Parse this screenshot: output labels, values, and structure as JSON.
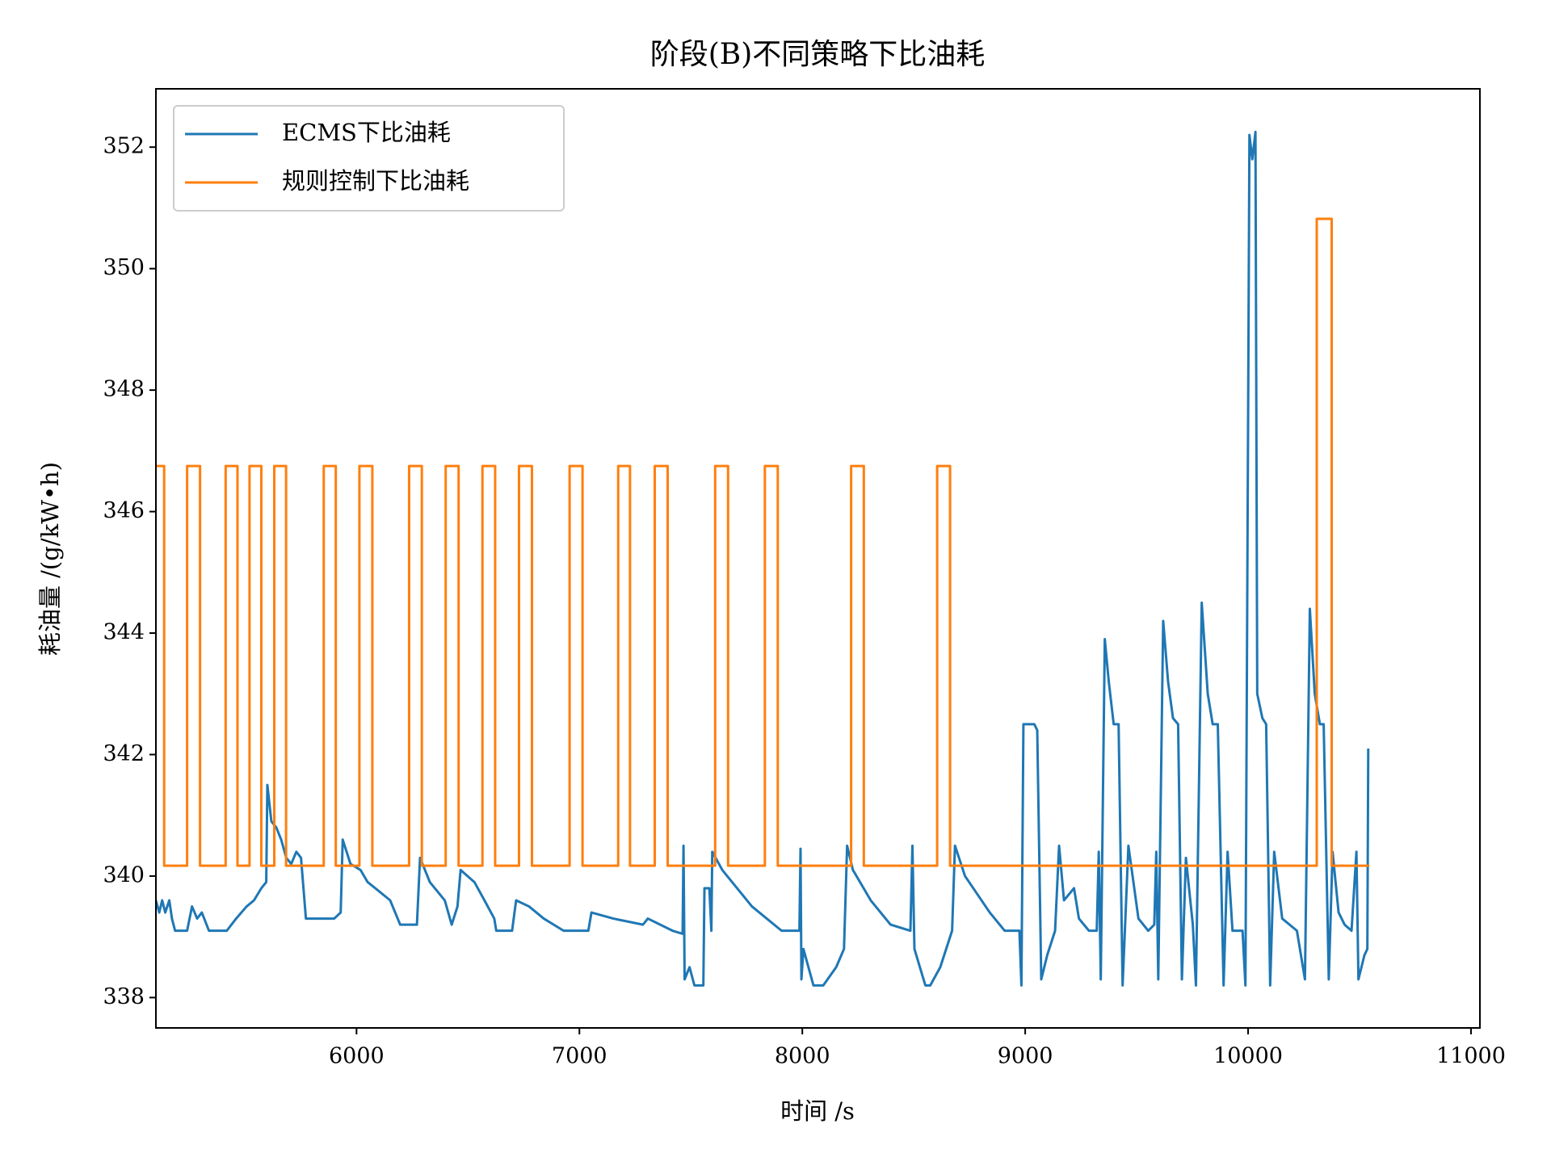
{
  "chart_data": {
    "type": "line",
    "title": "阶段(B)不同策略下比油耗",
    "xlabel": "时间 /s",
    "ylabel": "耗油量 /(g/kW•h)",
    "xlim": [
      5100,
      11040
    ],
    "ylim": [
      337.5,
      352.96
    ],
    "xticks": [
      6000,
      7000,
      8000,
      9000,
      10000,
      11000
    ],
    "yticks": [
      338,
      340,
      342,
      344,
      346,
      348,
      350,
      352
    ],
    "grid": false,
    "legend": "upper left",
    "series": [
      {
        "name": "ECMS下比油耗",
        "color": "#1f77b4",
        "x": [
          5100,
          5115,
          5128,
          5142,
          5160,
          5172,
          5186,
          5240,
          5262,
          5285,
          5306,
          5338,
          5418,
          5460,
          5507,
          5540,
          5573,
          5595,
          5600,
          5618,
          5640,
          5662,
          5685,
          5707,
          5730,
          5751,
          5773,
          5800,
          5850,
          5900,
          5929,
          5938,
          5973,
          6018,
          6050,
          6084,
          6151,
          6196,
          6271,
          6285,
          6329,
          6396,
          6427,
          6453,
          6467,
          6529,
          6574,
          6618,
          6627,
          6698,
          6716,
          6774,
          6840,
          6929,
          7040,
          7054,
          7152,
          7285,
          7307,
          7418,
          7463,
          7467,
          7472,
          7494,
          7516,
          7556,
          7561,
          7583,
          7592,
          7596,
          7641,
          7774,
          7907,
          7987,
          7992,
          7996,
          8005,
          8050,
          8094,
          8152,
          8187,
          8201,
          8227,
          8307,
          8396,
          8485,
          8494,
          8503,
          8552,
          8574,
          8619,
          8672,
          8685,
          8730,
          8841,
          8908,
          8974,
          8983,
          8992,
          9041,
          9054,
          9072,
          9099,
          9134,
          9152,
          9174,
          9219,
          9241,
          9286,
          9321,
          9330,
          9339,
          9357,
          9375,
          9397,
          9419,
          9437,
          9463,
          9508,
          9552,
          9579,
          9588,
          9597,
          9619,
          9641,
          9663,
          9686,
          9703,
          9721,
          9752,
          9766,
          9792,
          9819,
          9841,
          9864,
          9890,
          9908,
          9930,
          9975,
          9988,
          10006,
          10019,
          10033,
          10041,
          10064,
          10081,
          10099,
          10117,
          10153,
          10219,
          10255,
          10277,
          10299,
          10322,
          10339,
          10362,
          10379,
          10406,
          10433,
          10464,
          10486,
          10495,
          10522,
          10535,
          10539
        ],
        "values": [
          339.6,
          339.4,
          339.6,
          339.4,
          339.6,
          339.3,
          339.1,
          339.1,
          339.5,
          339.3,
          339.4,
          339.1,
          339.1,
          339.3,
          339.5,
          339.6,
          339.8,
          339.9,
          341.5,
          340.9,
          340.8,
          340.6,
          340.3,
          340.2,
          340.4,
          340.3,
          339.3,
          339.3,
          339.3,
          339.3,
          339.4,
          340.6,
          340.2,
          340.1,
          339.9,
          339.8,
          339.6,
          339.2,
          339.2,
          340.3,
          339.9,
          339.6,
          339.2,
          339.5,
          340.1,
          339.9,
          339.6,
          339.3,
          339.1,
          339.1,
          339.6,
          339.5,
          339.3,
          339.1,
          339.1,
          339.4,
          339.3,
          339.2,
          339.3,
          339.1,
          339.05,
          340.5,
          338.3,
          338.5,
          338.2,
          338.2,
          339.8,
          339.8,
          339.1,
          340.4,
          340.1,
          339.5,
          339.1,
          339.1,
          340.45,
          338.3,
          338.8,
          338.2,
          338.2,
          338.5,
          338.8,
          340.5,
          340.1,
          339.6,
          339.2,
          339.1,
          340.5,
          338.8,
          338.2,
          338.2,
          338.5,
          339.1,
          340.5,
          340.0,
          339.4,
          339.1,
          339.1,
          338.2,
          342.5,
          342.5,
          342.4,
          338.3,
          338.7,
          339.1,
          340.5,
          339.6,
          339.8,
          339.3,
          339.1,
          339.1,
          340.4,
          338.3,
          343.9,
          343.2,
          342.5,
          342.5,
          338.2,
          340.5,
          339.3,
          339.1,
          339.2,
          340.4,
          338.3,
          344.2,
          343.2,
          342.6,
          342.5,
          338.3,
          340.3,
          339.2,
          338.2,
          344.5,
          343.0,
          342.5,
          342.5,
          338.2,
          340.4,
          339.1,
          339.1,
          338.2,
          352.2,
          351.8,
          352.25,
          343.0,
          342.6,
          342.5,
          338.2,
          340.4,
          339.3,
          339.1,
          338.3,
          344.4,
          343.0,
          342.5,
          342.5,
          338.3,
          340.4,
          339.4,
          339.2,
          339.1,
          340.4,
          338.3,
          338.7,
          338.8,
          342.1
        ]
      },
      {
        "name": "规则控制下比油耗",
        "color": "#ff7f0e",
        "x": [
          5100,
          5137,
          5137,
          5240,
          5240,
          5298,
          5298,
          5413,
          5413,
          5466,
          5466,
          5520,
          5520,
          5573,
          5573,
          5631,
          5631,
          5684,
          5684,
          5853,
          5853,
          5907,
          5907,
          6013,
          6013,
          6071,
          6071,
          6236,
          6236,
          6293,
          6293,
          6400,
          6400,
          6458,
          6458,
          6565,
          6565,
          6622,
          6622,
          6729,
          6729,
          6787,
          6787,
          6956,
          6956,
          7014,
          7014,
          7174,
          7174,
          7227,
          7227,
          7338,
          7338,
          7396,
          7396,
          7609,
          7609,
          7667,
          7667,
          7832,
          7832,
          7890,
          7890,
          8219,
          8219,
          8276,
          8276,
          8605,
          8605,
          8663,
          8663,
          10308,
          10308,
          10375,
          10375,
          10544
        ],
        "values": [
          346.75,
          346.75,
          340.17,
          340.17,
          346.75,
          346.75,
          340.17,
          340.17,
          346.75,
          346.75,
          340.17,
          340.17,
          346.75,
          346.75,
          340.17,
          340.17,
          346.75,
          346.75,
          340.17,
          340.17,
          346.75,
          346.75,
          340.17,
          340.17,
          346.75,
          346.75,
          340.17,
          340.17,
          346.75,
          346.75,
          340.17,
          340.17,
          346.75,
          346.75,
          340.17,
          340.17,
          346.75,
          346.75,
          340.17,
          340.17,
          346.75,
          346.75,
          340.17,
          340.17,
          346.75,
          346.75,
          340.17,
          340.17,
          346.75,
          346.75,
          340.17,
          340.17,
          346.75,
          346.75,
          340.17,
          340.17,
          346.75,
          346.75,
          340.17,
          340.17,
          346.75,
          346.75,
          340.17,
          340.17,
          346.75,
          346.75,
          340.17,
          340.17,
          346.75,
          346.75,
          340.17,
          340.17,
          350.82,
          350.82,
          340.17,
          340.17
        ]
      }
    ]
  }
}
